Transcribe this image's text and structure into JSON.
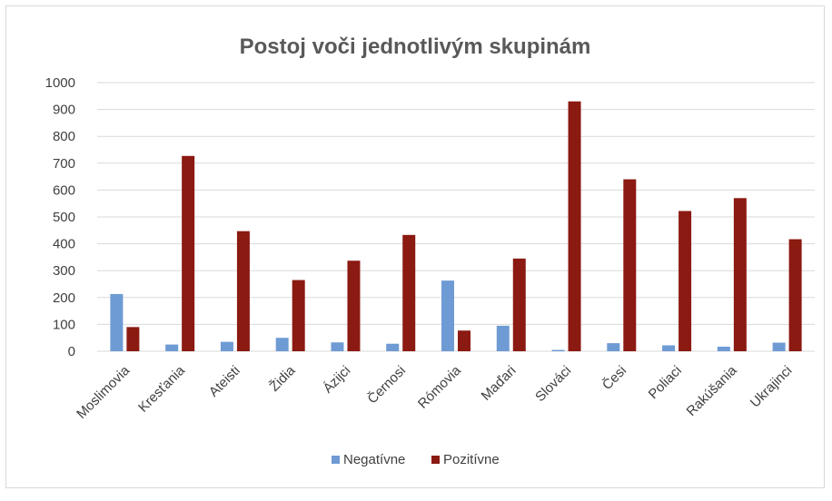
{
  "chart_data": {
    "type": "bar",
    "title": "Postoj voči jednotlivým skupinám",
    "categories": [
      "Moslimovia",
      "Kresťania",
      "Ateisti",
      "Židia",
      "Ázijci",
      "Černosi",
      "Rómovia",
      "Maďari",
      "Slováci",
      "Česi",
      "Poliaci",
      "Rakúšania",
      "Ukrajinci"
    ],
    "series": [
      {
        "name": "Negatívne",
        "color": "#6f9bd4",
        "values": [
          213,
          25,
          35,
          50,
          33,
          28,
          263,
          95,
          5,
          30,
          22,
          17,
          32
        ]
      },
      {
        "name": "Pozitívne",
        "color": "#8b1a12",
        "values": [
          90,
          727,
          447,
          265,
          337,
          433,
          77,
          345,
          930,
          640,
          522,
          570,
          417
        ]
      }
    ],
    "ylim": [
      0,
      1000
    ],
    "yticks": [
      0,
      100,
      200,
      300,
      400,
      500,
      600,
      700,
      800,
      900,
      1000
    ],
    "grid": true,
    "legend": "bottom"
  }
}
